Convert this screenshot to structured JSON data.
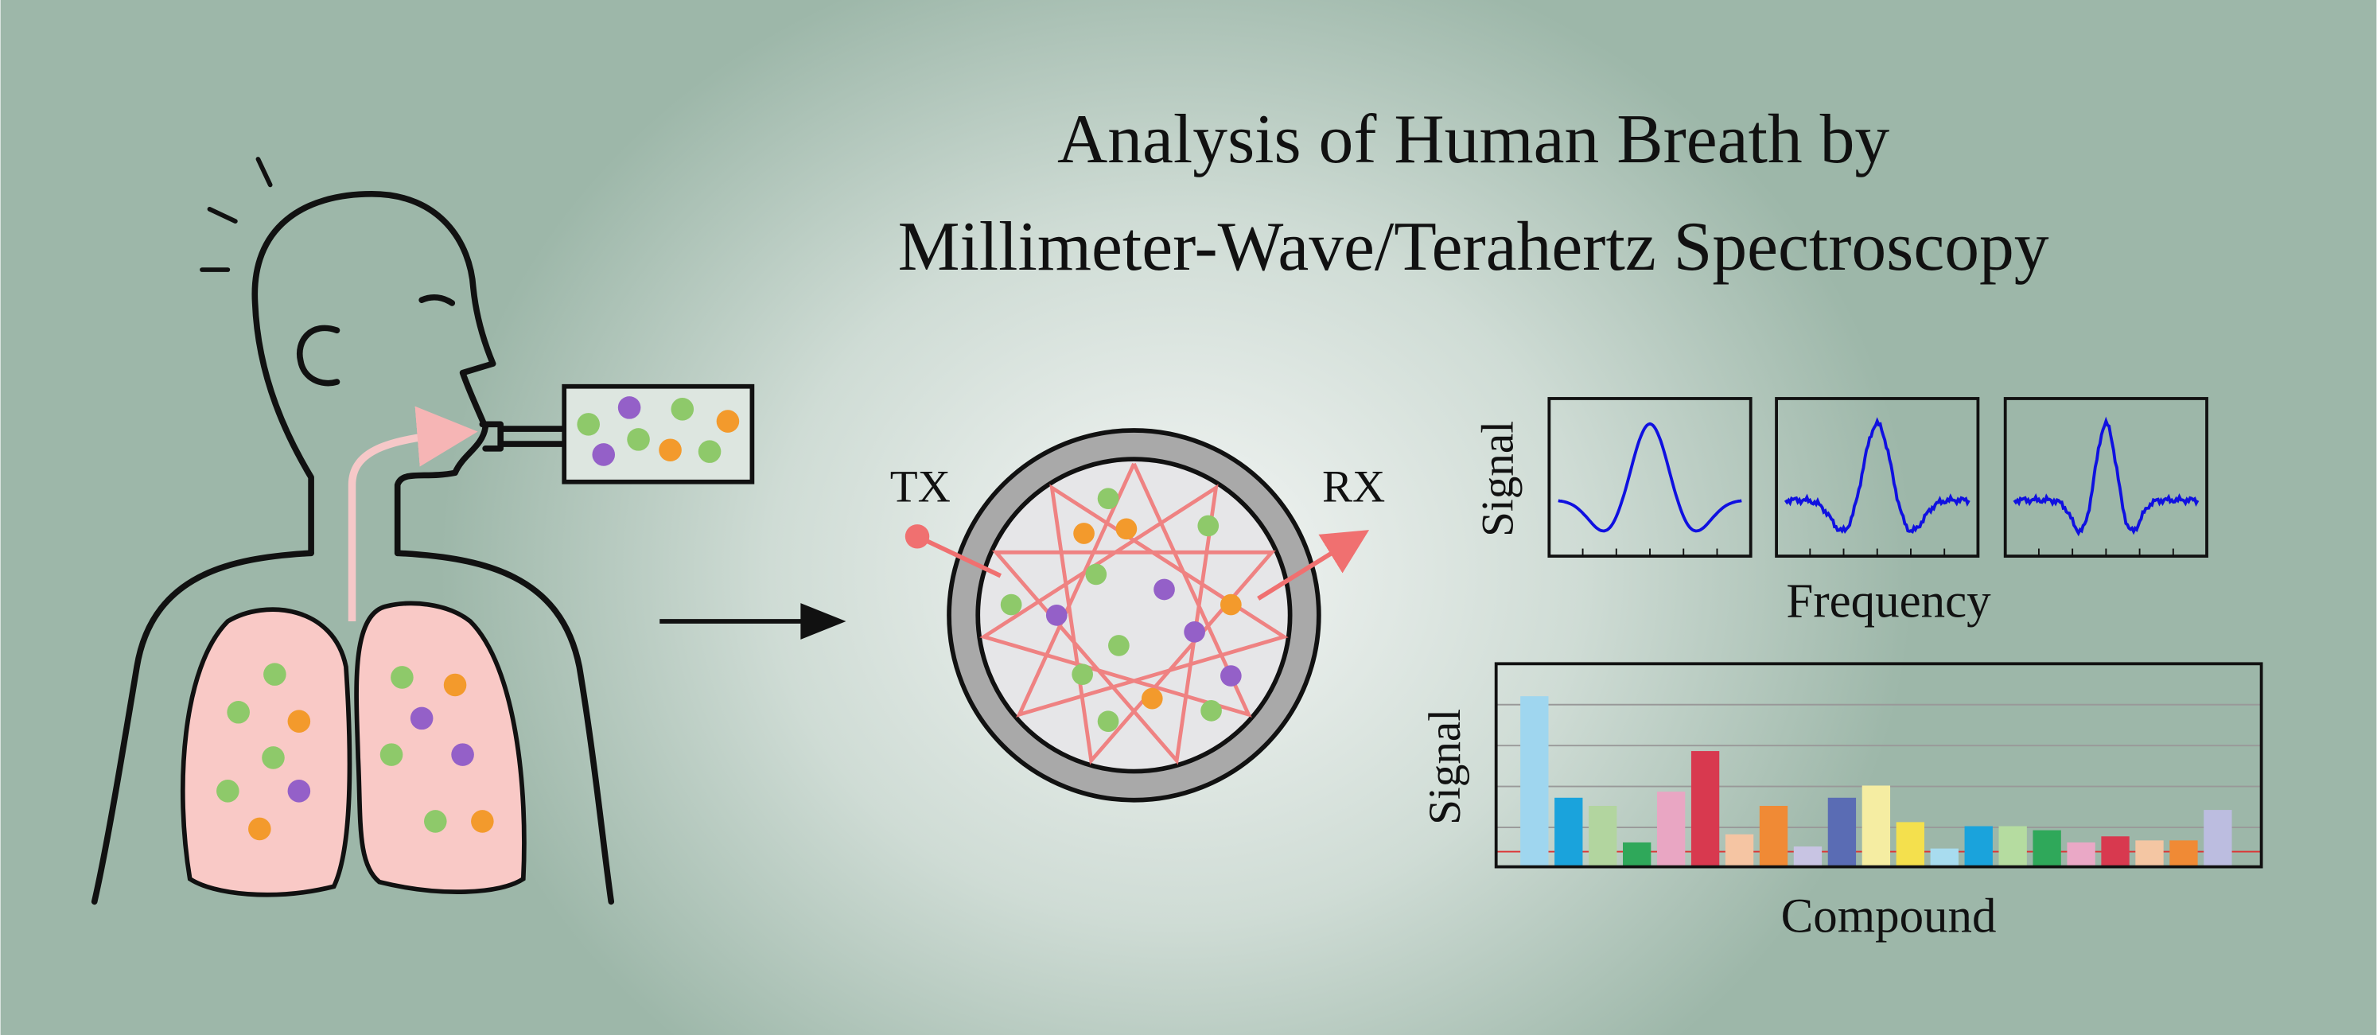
{
  "title": {
    "line1": "Analysis of Human Breath by",
    "line2": "Millimeter-Wave/Terahertz Spectroscopy"
  },
  "cell": {
    "tx": "TX",
    "rx": "RX"
  },
  "spectra": {
    "y_label": "Signal",
    "x_label": "Frequency"
  },
  "chart_data": {
    "type": "bar",
    "y_label": "Signal",
    "x_label": "Compound",
    "values": [
      84,
      34,
      30,
      12,
      37,
      57,
      16,
      30,
      10,
      34,
      40,
      22,
      9,
      20,
      20,
      18,
      12,
      15,
      13,
      13,
      28
    ],
    "colors": [
      "#9fd6ef",
      "#1aa3dc",
      "#b2d59f",
      "#2fa85a",
      "#e9a6c3",
      "#d8394f",
      "#f5c5a3",
      "#f08a35",
      "#c8c4e3",
      "#5a6cb4",
      "#f5eda2",
      "#f4e04d",
      "#a8dcef",
      "#1aa3dc",
      "#b5dca0",
      "#2fa85a",
      "#eaa8c6",
      "#d8394f",
      "#f4c6a3",
      "#f08a35",
      "#bcbde0"
    ],
    "ylim": [
      0,
      100
    ]
  }
}
